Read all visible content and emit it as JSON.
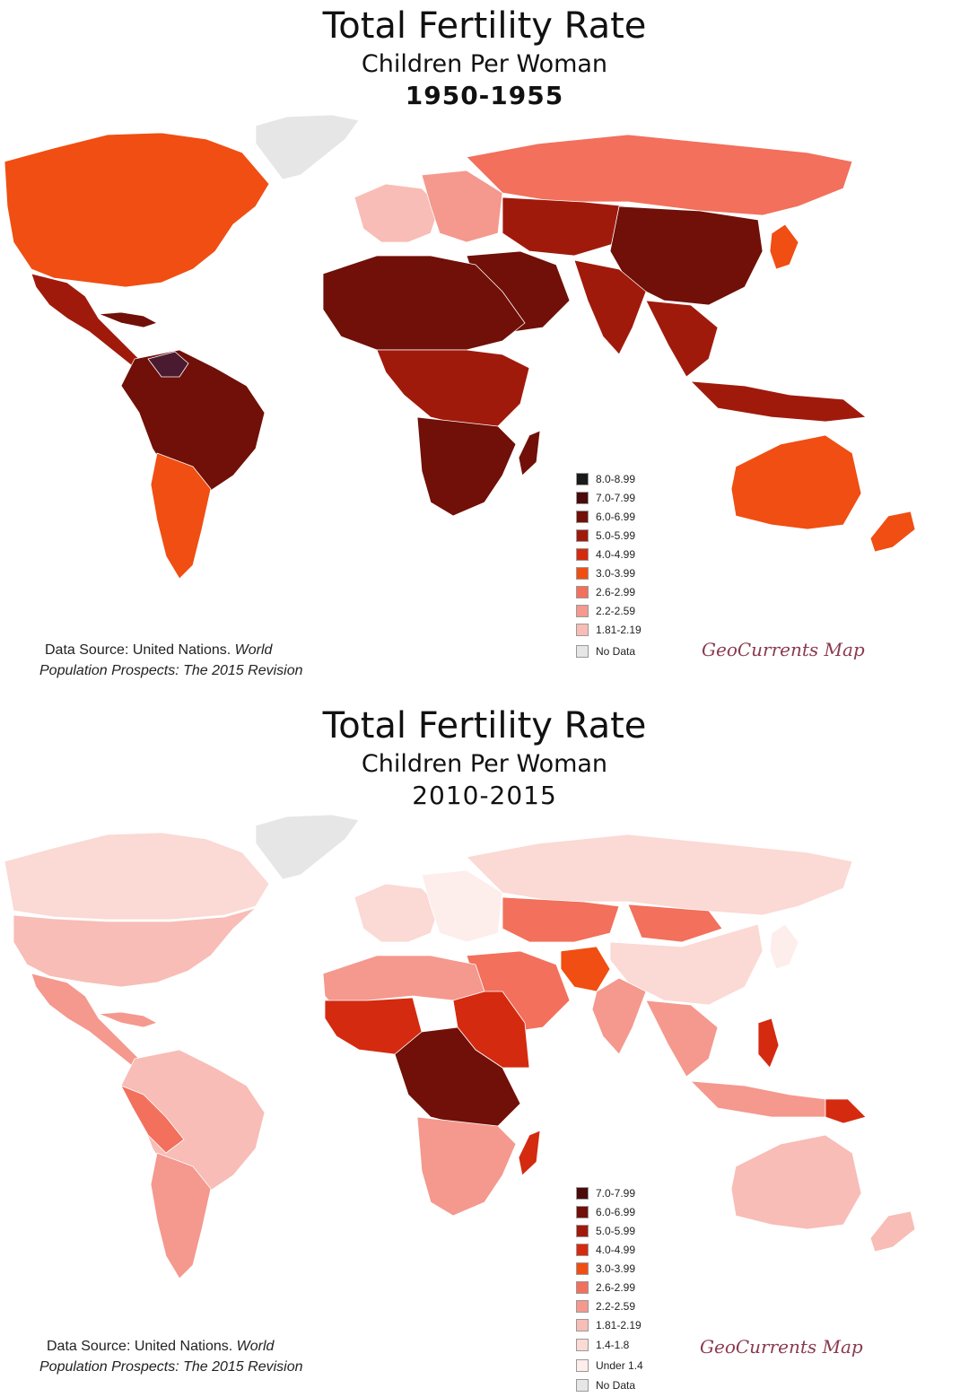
{
  "maps": [
    {
      "title": "Total Fertility Rate",
      "subtitle": "Children Per Woman",
      "period": "1950-1955",
      "legend": [
        {
          "label": "8.0-8.99",
          "color": "#1a1a1a"
        },
        {
          "label": "7.0-7.99",
          "color": "#4a0a0a"
        },
        {
          "label": "6.0-6.99",
          "color": "#701008"
        },
        {
          "label": "5.0-5.99",
          "color": "#a01a0c"
        },
        {
          "label": "4.0-4.99",
          "color": "#d42a10"
        },
        {
          "label": "3.0-3.99",
          "color": "#f04e12"
        },
        {
          "label": "2.6-2.99",
          "color": "#f2705c"
        },
        {
          "label": "2.2-2.59",
          "color": "#f5988e"
        },
        {
          "label": "1.81-2.19",
          "color": "#f8bdb6"
        },
        {
          "label": "No Data",
          "color": "#e6e6e6"
        }
      ],
      "source_line1": "Data Source: United Nations.",
      "source_line1_italic": "World",
      "source_line2": "Population Prospects: The 2015 Revision",
      "brand": "GeoCurrents Map"
    },
    {
      "title": "Total Fertility Rate",
      "subtitle": "Children Per Woman",
      "period": "2010-2015",
      "legend": [
        {
          "label": "7.0-7.99",
          "color": "#4a0a0a"
        },
        {
          "label": "6.0-6.99",
          "color": "#701008"
        },
        {
          "label": "5.0-5.99",
          "color": "#a01a0c"
        },
        {
          "label": "4.0-4.99",
          "color": "#d42a10"
        },
        {
          "label": "3.0-3.99",
          "color": "#f04e12"
        },
        {
          "label": "2.6-2.99",
          "color": "#f2705c"
        },
        {
          "label": "2.2-2.59",
          "color": "#f5988e"
        },
        {
          "label": "1.81-2.19",
          "color": "#f8bdb6"
        },
        {
          "label": "1.4-1.8",
          "color": "#fbd9d4"
        },
        {
          "label": "Under 1.4",
          "color": "#fdeeec"
        },
        {
          "label": "No Data",
          "color": "#e6e6e6"
        }
      ],
      "source_line1": "Data Source: United Nations.",
      "source_line1_italic": "World",
      "source_line2": "Population Prospects: The 2015 Revision",
      "brand": "GeoCurrents Map"
    }
  ],
  "region_colors": {
    "1950": {
      "greenland": "#e6e6e6",
      "north_america": "#f04e12",
      "mexico_central": "#a01a0c",
      "caribbean": "#701008",
      "south_america": "#701008",
      "venezuela": "#4a1a30",
      "southern_cone": "#f04e12",
      "europe_west": "#f8bdb6",
      "europe_east": "#f5988e",
      "russia": "#f2705c",
      "africa_north": "#701008",
      "africa_central": "#a01a0c",
      "africa_south": "#701008",
      "middle_east": "#701008",
      "central_asia": "#a01a0c",
      "china": "#701008",
      "india": "#a01a0c",
      "japan": "#f04e12",
      "southeast_asia": "#a01a0c",
      "indonesia": "#a01a0c",
      "australia": "#f04e12",
      "new_zealand": "#f04e12",
      "madagascar": "#701008"
    },
    "2010": {
      "greenland": "#e6e6e6",
      "north_america": "#f8bdb6",
      "canada": "#fbd9d4",
      "mexico_central": "#f5988e",
      "caribbean": "#f5988e",
      "south_america": "#f8bdb6",
      "peru_bolivia": "#f2705c",
      "southern_cone": "#f5988e",
      "europe_west": "#fbd9d4",
      "europe_east": "#fdeeec",
      "russia": "#fbd9d4",
      "africa_north": "#f5988e",
      "africa_west": "#d42a10",
      "africa_central": "#701008",
      "africa_east": "#d42a10",
      "africa_south": "#f5988e",
      "middle_east": "#f2705c",
      "central_asia": "#f2705c",
      "mongolia": "#f2705c",
      "china": "#fbd9d4",
      "india": "#f5988e",
      "pakistan": "#f04e12",
      "japan": "#fdeeec",
      "southeast_asia": "#f5988e",
      "philippines": "#d42a10",
      "indonesia": "#f5988e",
      "papua": "#d42a10",
      "australia": "#f8bdb6",
      "new_zealand": "#f8bdb6",
      "madagascar": "#d42a10"
    }
  }
}
